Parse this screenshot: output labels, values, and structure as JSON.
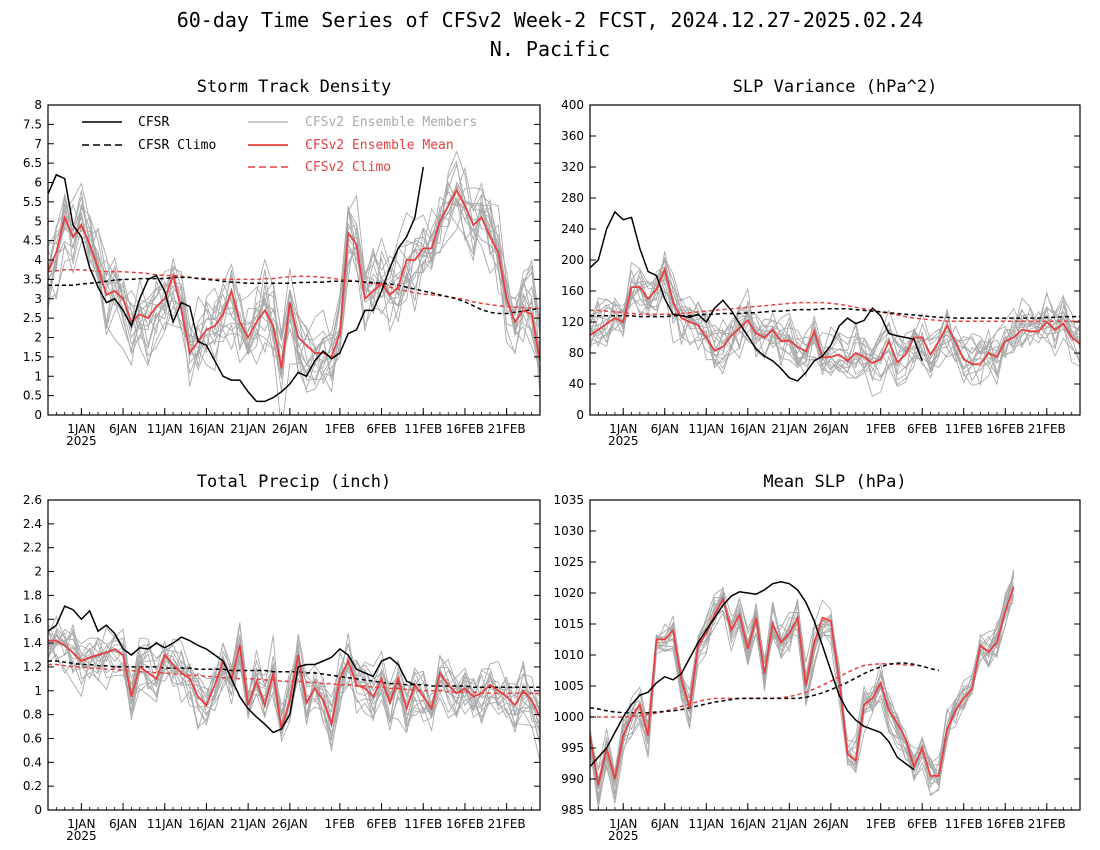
{
  "title_line1": "60-day Time Series of CFSv2 Week-2 FCST, 2024.12.27-2025.02.24",
  "title_line2": "N. Pacific",
  "colors": {
    "cfsr": "#000000",
    "members": "#aaaaaa",
    "ens_mean": "#e84040",
    "cfsv2_climo": "#e84040",
    "cfsr_climo": "#000000"
  },
  "legend": {
    "cfsr": "CFSR",
    "cfsr_climo": "CFSR Climo",
    "members": "CFSv2 Ensemble Members",
    "ens_mean": "CFSv2 Ensemble Mean",
    "cfsv2_climo": "CFSv2 Climo"
  },
  "x_ticks": [
    {
      "day": 5,
      "label": "1JAN",
      "sub": "2025"
    },
    {
      "day": 10,
      "label": "6JAN"
    },
    {
      "day": 15,
      "label": "11JAN"
    },
    {
      "day": 20,
      "label": "16JAN"
    },
    {
      "day": 25,
      "label": "21JAN"
    },
    {
      "day": 30,
      "label": "26JAN"
    },
    {
      "day": 36,
      "label": "1FEB"
    },
    {
      "day": 41,
      "label": "6FEB"
    },
    {
      "day": 46,
      "label": "11FEB"
    },
    {
      "day": 51,
      "label": "16FEB"
    },
    {
      "day": 56,
      "label": "21FEB"
    }
  ],
  "chart_data": [
    {
      "type": "line",
      "title": "Storm Track Density",
      "ylim": [
        0,
        8
      ],
      "yticks": [
        "0",
        "0.5",
        "1",
        "1.5",
        "2",
        "2.5",
        "3",
        "3.5",
        "4",
        "4.5",
        "5",
        "5.5",
        "6",
        "6.5",
        "7",
        "7.5",
        "8"
      ],
      "x_start": 1,
      "x_end": 60,
      "cfsr": [
        5.7,
        6.2,
        6.1,
        4.9,
        4.6,
        3.8,
        3.3,
        2.9,
        3.0,
        2.7,
        2.3,
        3.0,
        3.5,
        3.6,
        3.2,
        2.4,
        2.9,
        2.8,
        1.9,
        1.8,
        1.4,
        1.0,
        0.9,
        0.9,
        0.6,
        0.35,
        0.35,
        0.45,
        0.6,
        0.8,
        1.1,
        1.0,
        1.4,
        1.65,
        1.45,
        1.6,
        2.1,
        2.2,
        2.7,
        2.7,
        3.2,
        3.8,
        4.3,
        4.6,
        5.1,
        6.4
      ],
      "ens_mean": [
        3.7,
        4.2,
        5.1,
        4.6,
        4.9,
        4.4,
        3.8,
        3.1,
        3.2,
        3.0,
        2.4,
        2.6,
        2.5,
        2.8,
        3.0,
        3.6,
        2.7,
        1.6,
        1.9,
        2.2,
        2.3,
        2.6,
        3.2,
        2.4,
        2.0,
        2.4,
        2.7,
        2.3,
        1.2,
        2.9,
        2.0,
        1.8,
        1.6,
        1.6,
        1.5,
        2.1,
        4.7,
        4.4,
        3.0,
        3.2,
        3.4,
        3.1,
        3.3,
        4.0,
        4.0,
        4.3,
        4.3,
        5.0,
        5.4,
        5.8,
        5.4,
        4.9,
        5.1,
        4.6,
        4.2,
        3.0,
        2.4,
        2.7,
        2.6,
        1.4
      ],
      "cfsr_climo": [
        3.35,
        3.35,
        3.35,
        3.35,
        3.38,
        3.4,
        3.42,
        3.45,
        3.48,
        3.5,
        3.5,
        3.52,
        3.52,
        3.52,
        3.52,
        3.55,
        3.55,
        3.55,
        3.52,
        3.5,
        3.48,
        3.45,
        3.43,
        3.42,
        3.4,
        3.4,
        3.4,
        3.4,
        3.4,
        3.4,
        3.42,
        3.42,
        3.43,
        3.43,
        3.45,
        3.45,
        3.45,
        3.45,
        3.43,
        3.42,
        3.4,
        3.38,
        3.35,
        3.3,
        3.25,
        3.2,
        3.15,
        3.1,
        3.05,
        3.0,
        2.92,
        2.82,
        2.72,
        2.65,
        2.62,
        2.62,
        2.65,
        2.68,
        2.72,
        2.75
      ],
      "cfsv2_climo": [
        3.7,
        3.72,
        3.75,
        3.75,
        3.75,
        3.73,
        3.72,
        3.7,
        3.7,
        3.7,
        3.68,
        3.67,
        3.65,
        3.62,
        3.6,
        3.6,
        3.58,
        3.55,
        3.53,
        3.52,
        3.5,
        3.5,
        3.5,
        3.5,
        3.5,
        3.5,
        3.52,
        3.52,
        3.55,
        3.57,
        3.58,
        3.58,
        3.57,
        3.55,
        3.53,
        3.5,
        3.48,
        3.45,
        3.42,
        3.38,
        3.35,
        3.3,
        3.25,
        3.2,
        3.15,
        3.12,
        3.1,
        3.08,
        3.05,
        3.02,
        2.98,
        2.92,
        2.88,
        2.85,
        2.82,
        2.8,
        2.78,
        2.77,
        2.76,
        2.75
      ],
      "member_spread": 1.3,
      "member_count": 16
    },
    {
      "type": "line",
      "title": "SLP Variance (hPa^2)",
      "ylim": [
        0,
        400
      ],
      "yticks": [
        "0",
        "40",
        "80",
        "120",
        "160",
        "200",
        "240",
        "280",
        "320",
        "360",
        "400"
      ],
      "x_start": 1,
      "x_end": 60,
      "cfsr": [
        190,
        200,
        240,
        262,
        252,
        255,
        215,
        185,
        180,
        150,
        130,
        128,
        126,
        130,
        120,
        138,
        148,
        135,
        118,
        102,
        85,
        76,
        70,
        60,
        48,
        44,
        55,
        70,
        76,
        90,
        115,
        125,
        118,
        122,
        138,
        128,
        105,
        102,
        100,
        98,
        70
      ],
      "ens_mean": [
        103,
        110,
        118,
        125,
        120,
        165,
        165,
        150,
        162,
        188,
        145,
        125,
        120,
        116,
        100,
        83,
        88,
        102,
        112,
        122,
        105,
        100,
        110,
        95,
        96,
        88,
        82,
        108,
        74,
        75,
        78,
        70,
        80,
        75,
        67,
        72,
        95,
        68,
        78,
        100,
        100,
        78,
        95,
        115,
        95,
        72,
        66,
        65,
        80,
        75,
        95,
        100,
        110,
        108,
        108,
        120,
        110,
        118,
        100,
        92
      ],
      "cfsr_climo": [
        128,
        128,
        128,
        128,
        128,
        128,
        127,
        127,
        127,
        127,
        128,
        128,
        128,
        129,
        130,
        130,
        131,
        131,
        131,
        132,
        132,
        133,
        134,
        134,
        135,
        136,
        136,
        136,
        137,
        137,
        137,
        137,
        136,
        135,
        134,
        133,
        132,
        131,
        130,
        129,
        128,
        127,
        126,
        126,
        125,
        125,
        125,
        125,
        125,
        125,
        125,
        125,
        125,
        125,
        125,
        126,
        126,
        127,
        127,
        127
      ],
      "cfsv2_climo": [
        135,
        135,
        134,
        133,
        132,
        131,
        130,
        130,
        130,
        130,
        130,
        131,
        132,
        133,
        134,
        135,
        136,
        137,
        138,
        139,
        140,
        141,
        142,
        143,
        144,
        145,
        145,
        145,
        145,
        144,
        143,
        141,
        139,
        137,
        135,
        133,
        131,
        129,
        127,
        125,
        124,
        123,
        122,
        121,
        121,
        121,
        121,
        121,
        121,
        121,
        121,
        121,
        121,
        121,
        121,
        121,
        121,
        121,
        121,
        121
      ],
      "member_spread": 42,
      "member_count": 16
    },
    {
      "type": "line",
      "title": "Total Precip (inch)",
      "ylim": [
        0,
        2.6
      ],
      "yticks": [
        "0",
        "0.2",
        "0.4",
        "0.6",
        "0.8",
        "1",
        "1.2",
        "1.4",
        "1.6",
        "1.8",
        "2",
        "2.2",
        "2.4",
        "2.6"
      ],
      "x_start": 1,
      "x_end": 60,
      "cfsr": [
        1.5,
        1.55,
        1.71,
        1.68,
        1.6,
        1.67,
        1.5,
        1.55,
        1.48,
        1.35,
        1.3,
        1.36,
        1.35,
        1.4,
        1.36,
        1.4,
        1.45,
        1.42,
        1.38,
        1.35,
        1.3,
        1.25,
        1.1,
        0.95,
        0.85,
        0.78,
        0.72,
        0.65,
        0.68,
        0.8,
        1.2,
        1.22,
        1.22,
        1.25,
        1.28,
        1.35,
        1.3,
        1.18,
        1.15,
        1.12,
        1.25,
        1.28,
        1.22,
        1.08,
        1.05
      ],
      "ens_mean": [
        1.42,
        1.42,
        1.38,
        1.32,
        1.25,
        1.28,
        1.3,
        1.32,
        1.35,
        1.3,
        0.95,
        1.2,
        1.15,
        1.1,
        1.3,
        1.22,
        1.15,
        1.1,
        0.95,
        0.88,
        1.05,
        1.25,
        1.1,
        1.38,
        0.88,
        1.08,
        0.88,
        1.15,
        0.68,
        0.92,
        1.3,
        0.9,
        1.02,
        0.92,
        0.72,
        1.1,
        1.25,
        1.05,
        1.02,
        0.95,
        1.1,
        0.9,
        1.1,
        0.85,
        1.05,
        0.95,
        0.85,
        1.15,
        1.05,
        0.98,
        1.02,
        0.95,
        0.98,
        1.05,
        1.0,
        0.95,
        0.88,
        1.0,
        0.92,
        0.78
      ],
      "cfsr_climo": [
        1.25,
        1.25,
        1.24,
        1.23,
        1.22,
        1.22,
        1.21,
        1.21,
        1.2,
        1.2,
        1.2,
        1.2,
        1.2,
        1.2,
        1.19,
        1.19,
        1.19,
        1.19,
        1.18,
        1.18,
        1.18,
        1.18,
        1.17,
        1.17,
        1.17,
        1.17,
        1.17,
        1.16,
        1.16,
        1.16,
        1.16,
        1.15,
        1.15,
        1.14,
        1.13,
        1.12,
        1.11,
        1.1,
        1.09,
        1.08,
        1.07,
        1.06,
        1.06,
        1.05,
        1.05,
        1.05,
        1.04,
        1.04,
        1.04,
        1.04,
        1.04,
        1.03,
        1.03,
        1.03,
        1.03,
        1.03,
        1.03,
        1.03,
        1.03,
        1.03
      ],
      "cfsv2_climo": [
        1.22,
        1.22,
        1.21,
        1.2,
        1.2,
        1.19,
        1.19,
        1.18,
        1.18,
        1.17,
        1.17,
        1.16,
        1.16,
        1.15,
        1.15,
        1.14,
        1.14,
        1.13,
        1.13,
        1.12,
        1.12,
        1.11,
        1.11,
        1.1,
        1.1,
        1.1,
        1.09,
        1.09,
        1.08,
        1.08,
        1.08,
        1.07,
        1.07,
        1.06,
        1.06,
        1.05,
        1.05,
        1.04,
        1.04,
        1.03,
        1.03,
        1.02,
        1.02,
        1.01,
        1.01,
        1.0,
        1.0,
        1.0,
        0.99,
        0.99,
        0.99,
        0.99,
        0.98,
        0.98,
        0.98,
        0.98,
        0.98,
        0.98,
        0.98,
        0.98
      ],
      "member_spread": 0.3,
      "member_count": 16
    },
    {
      "type": "line",
      "title": "Mean SLP (hPa)",
      "ylim": [
        985,
        1035
      ],
      "yticks": [
        "985",
        "990",
        "995",
        "1000",
        "1005",
        "1010",
        "1015",
        "1020",
        "1025",
        "1030",
        "1035"
      ],
      "x_start": 1,
      "x_end": 60,
      "cfsr": [
        992,
        993.5,
        995,
        997.5,
        1000,
        1002,
        1003.5,
        1004,
        1005.5,
        1006.5,
        1006,
        1007,
        1009.5,
        1012,
        1014,
        1016,
        1018,
        1019.5,
        1020.2,
        1020,
        1019.8,
        1020.5,
        1021.5,
        1021.8,
        1021.5,
        1020.5,
        1018.5,
        1015.5,
        1011.5,
        1007.5,
        1003.5,
        1001,
        999.5,
        998.5,
        998,
        997.5,
        996,
        993.5,
        992.5,
        991.5
      ],
      "ens_mean": [
        997,
        989,
        995,
        990,
        997,
        1000,
        1002,
        997,
        1012.5,
        1012.5,
        1014,
        1006,
        1001.5,
        1011.5,
        1013.5,
        1016.5,
        1019,
        1014,
        1016.5,
        1011,
        1016,
        1007,
        1015,
        1012,
        1013.5,
        1016,
        1005,
        1012,
        1016,
        1015.5,
        1006,
        994,
        993,
        1002,
        1003,
        1005.5,
        1001,
        999,
        996.5,
        992,
        995,
        990.5,
        990.5,
        998,
        1001,
        1003,
        1004.5,
        1011.5,
        1010.5,
        1012,
        1017,
        1021
      ],
      "cfsr_climo": [
        1001.5,
        1001.3,
        1001,
        1000.8,
        1000.7,
        1000.7,
        1000.7,
        1000.7,
        1000.8,
        1000.9,
        1001,
        1001.2,
        1001.5,
        1001.8,
        1002.1,
        1002.4,
        1002.6,
        1002.8,
        1003,
        1003,
        1003,
        1003,
        1003,
        1003,
        1003,
        1003,
        1003.2,
        1003.5,
        1003.9,
        1004.4,
        1005,
        1005.6,
        1006.3,
        1007,
        1007.6,
        1008.1,
        1008.5,
        1008.7,
        1008.7,
        1008.5,
        1008.2,
        1007.8,
        1007.5
      ],
      "cfsv2_climo": [
        1000,
        1000,
        1000,
        1000,
        1000,
        1000.1,
        1000.2,
        1000.4,
        1000.6,
        1000.9,
        1001.3,
        1001.7,
        1002.1,
        1002.5,
        1002.8,
        1003,
        1003,
        1003,
        1003,
        1003,
        1003,
        1003,
        1003,
        1003.1,
        1003.3,
        1003.6,
        1004,
        1004.5,
        1005.1,
        1005.8,
        1006.5,
        1007.2,
        1007.8,
        1008.3,
        1008.5,
        1008.6,
        1008.6,
        1008.5,
        1008.4,
        1008.3
      ],
      "member_spread": 4.0,
      "member_count": 16
    }
  ]
}
